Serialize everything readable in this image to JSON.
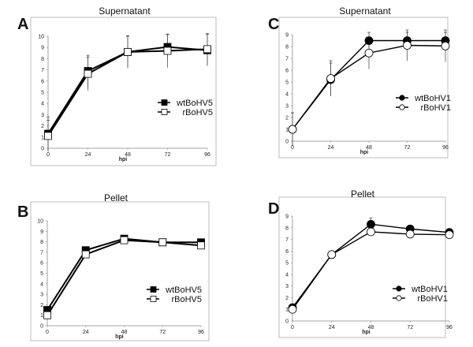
{
  "chart_data": [
    {
      "panel": "A",
      "type": "line",
      "title": "Supernatant",
      "xlabel": "hpi",
      "ylabel": "",
      "x": [
        0,
        24,
        48,
        72,
        96
      ],
      "xticks": [
        "0",
        "24",
        "48",
        "72",
        "96"
      ],
      "ylim": [
        0,
        10
      ],
      "yticks": [
        "0",
        "1",
        "2",
        "3",
        "4",
        "5",
        "6",
        "7",
        "8",
        "9",
        "10"
      ],
      "legend_position": "right-middle",
      "marker": "square",
      "series": [
        {
          "name": "wtBoHV5",
          "fill": "#000000",
          "values": [
            1.3,
            6.9,
            8.6,
            9.05,
            8.75
          ],
          "error": [
            1.5,
            1.4,
            1.4,
            1.1,
            1.4
          ]
        },
        {
          "name": "rBoHV5",
          "fill": "#ffffff",
          "values": [
            1.1,
            6.65,
            8.6,
            8.7,
            8.85
          ],
          "error": [
            1.4,
            1.5,
            1.45,
            1.5,
            1.4
          ]
        }
      ]
    },
    {
      "panel": "C",
      "type": "line",
      "title": "Supernatant",
      "xlabel": "hpi",
      "ylabel": "",
      "x": [
        0,
        24,
        48,
        72,
        96
      ],
      "xticks": [
        "0",
        "24",
        "48",
        "72",
        "96"
      ],
      "ylim": [
        0,
        9
      ],
      "yticks": [
        "0",
        "1",
        "2",
        "3",
        "4",
        "5",
        "6",
        "7",
        "8",
        "9"
      ],
      "legend_position": "right-middle",
      "marker": "circle",
      "series": [
        {
          "name": "wtBoHV1",
          "fill": "#000000",
          "values": [
            1.0,
            5.2,
            8.5,
            8.5,
            8.5
          ],
          "error": [
            1.4,
            1.4,
            0.7,
            0.7,
            0.7
          ]
        },
        {
          "name": "rBoHV1",
          "fill": "#ffffff",
          "values": [
            1.0,
            5.3,
            7.45,
            8.1,
            8.05
          ],
          "error": [
            1.4,
            1.5,
            1.35,
            1.3,
            1.35
          ]
        }
      ]
    },
    {
      "panel": "B",
      "type": "line",
      "title": "Pellet",
      "xlabel": "hpi",
      "ylabel": "",
      "x": [
        0,
        24,
        48,
        72,
        96
      ],
      "xticks": [
        "0",
        "24",
        "48",
        "72",
        "96"
      ],
      "ylim": [
        0,
        10
      ],
      "yticks": [
        "0",
        "1",
        "2",
        "3",
        "4",
        "5",
        "6",
        "7",
        "8",
        "9",
        "10"
      ],
      "legend_position": "bottom-right",
      "marker": "square",
      "series": [
        {
          "name": "wtBoHV5",
          "fill": "#000000",
          "values": [
            1.5,
            7.2,
            8.3,
            7.95,
            7.95
          ],
          "error": [
            0.2,
            0.15,
            0.25,
            0.1,
            0.1
          ]
        },
        {
          "name": "rBoHV5",
          "fill": "#ffffff",
          "values": [
            1.0,
            6.8,
            8.15,
            7.95,
            7.65
          ],
          "error": [
            0.2,
            0.15,
            0.2,
            0.1,
            0.1
          ]
        }
      ]
    },
    {
      "panel": "D",
      "type": "line",
      "title": "Pellet",
      "xlabel": "hpi",
      "ylabel": "",
      "x": [
        0,
        24,
        48,
        72,
        96
      ],
      "xticks": [
        "0",
        "24",
        "48",
        "72",
        "96"
      ],
      "ylim": [
        0,
        9
      ],
      "yticks": [
        "0",
        "1",
        "2",
        "3",
        "4",
        "5",
        "6",
        "7",
        "8",
        "9"
      ],
      "legend_position": "bottom-right",
      "marker": "circle",
      "series": [
        {
          "name": "wtBoHV1",
          "fill": "#000000",
          "values": [
            1.15,
            5.7,
            8.3,
            7.9,
            7.6
          ],
          "error": [
            0.1,
            0.3,
            0.55,
            0.1,
            0.1
          ]
        },
        {
          "name": "rBoHV1",
          "fill": "#ffffff",
          "values": [
            1.0,
            5.7,
            7.65,
            7.45,
            7.4
          ],
          "error": [
            0.1,
            0.3,
            0.1,
            0.1,
            0.1
          ]
        }
      ]
    }
  ]
}
